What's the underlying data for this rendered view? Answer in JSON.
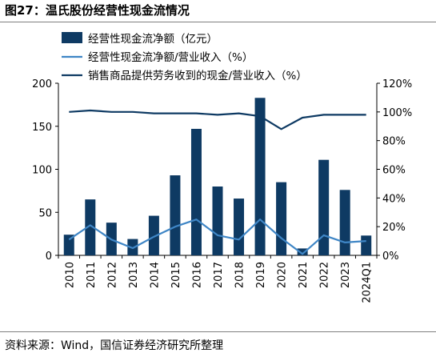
{
  "title": "图27：温氏股份经营性现金流情况",
  "source": "资料来源：Wind，国信证券经济研究所整理",
  "colors": {
    "bar": "#0e3a63",
    "ratio_op": "#3f86c6",
    "ratio_sales": "#0e3a63",
    "axis": "#000000"
  },
  "chart_data": {
    "type": "bar",
    "categories": [
      "2010",
      "2011",
      "2012",
      "2013",
      "2014",
      "2015",
      "2016",
      "2017",
      "2018",
      "2019",
      "2020",
      "2021",
      "2022",
      "2023",
      "2024Q1"
    ],
    "series": [
      {
        "name": "经营性现金流净额（亿元）",
        "type": "bar",
        "axis": "left",
        "values": [
          24,
          65,
          38,
          19,
          46,
          93,
          147,
          80,
          66,
          183,
          85,
          8,
          111,
          76,
          23
        ]
      },
      {
        "name": "经营性现金流净额/营业收入（%）",
        "type": "line",
        "axis": "right",
        "values": [
          11,
          21,
          11,
          5,
          13,
          20,
          25,
          14,
          11,
          25,
          12,
          1,
          14,
          9,
          10
        ]
      },
      {
        "name": "销售商品提供劳务收到的现金/营业收入（%）",
        "type": "line",
        "axis": "right",
        "values": [
          100,
          101,
          100,
          100,
          99,
          99,
          99,
          98,
          99,
          97,
          88,
          96,
          98,
          98,
          98
        ]
      }
    ],
    "y_left": {
      "min": 0,
      "max": 200,
      "ticks": [
        0,
        50,
        100,
        150,
        200
      ],
      "tick_labels": [
        "0",
        "50",
        "100",
        "150",
        "200"
      ]
    },
    "y_right": {
      "min": 0,
      "max": 120,
      "ticks": [
        0,
        20,
        40,
        60,
        80,
        100,
        120
      ],
      "tick_labels": [
        "0%",
        "20%",
        "40%",
        "60%",
        "80%",
        "100%",
        "120%"
      ]
    },
    "grid": false,
    "legend_position": "top"
  }
}
